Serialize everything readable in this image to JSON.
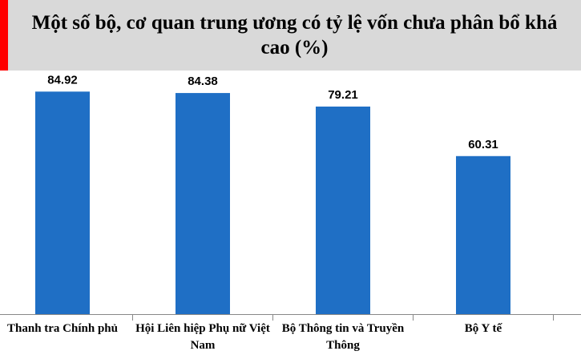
{
  "chart_data": {
    "type": "bar",
    "title": "Một số bộ, cơ quan trung ương có tỷ lệ vốn chưa phân bổ khá cao (%)",
    "categories": [
      "Thanh tra Chính phủ",
      "Hội Liên hiệp Phụ nữ Việt Nam",
      "Bộ Thông tin và Truyền Thông",
      "Bộ Y tế"
    ],
    "values": [
      84.92,
      84.38,
      79.21,
      60.31
    ],
    "color": "#1f6fc5"
  }
}
